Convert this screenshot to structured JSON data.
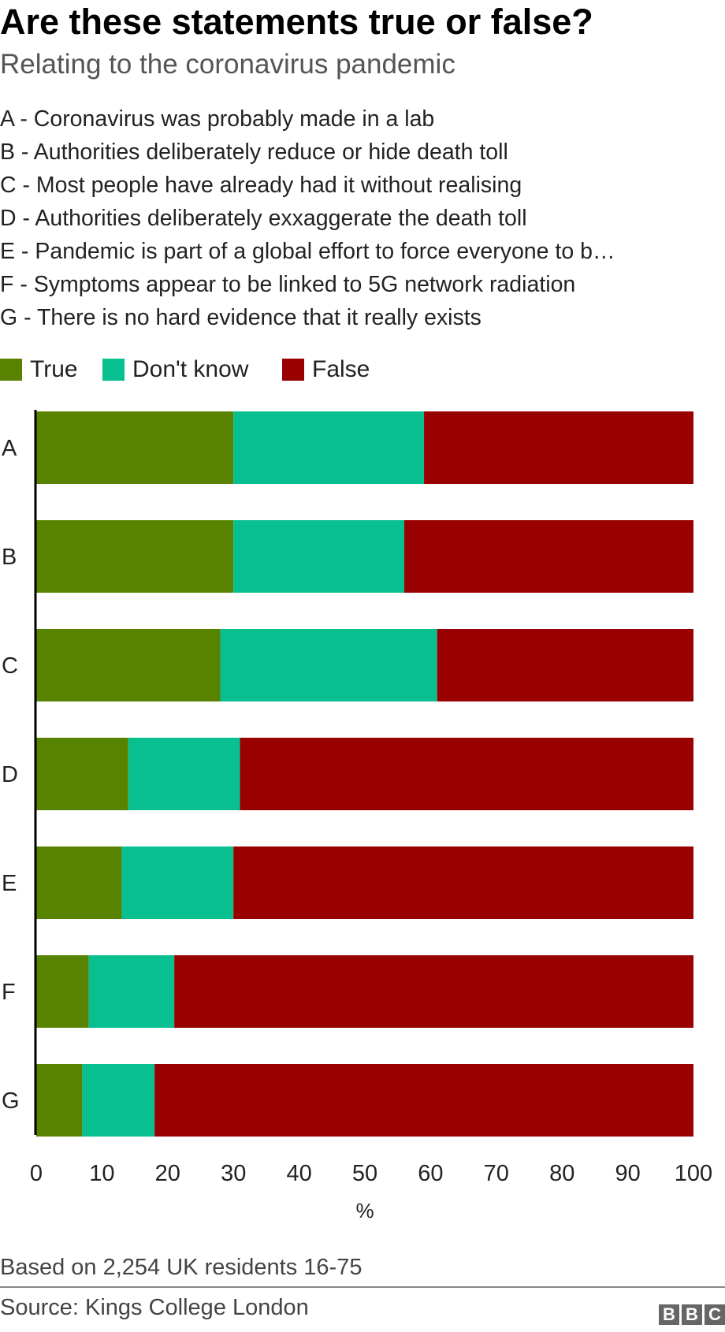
{
  "header": {
    "title": "Are these statements true or false?",
    "subtitle": "Relating to the coronavirus pandemic"
  },
  "statements": [
    "A - Coronavirus was probably made in a lab",
    "B - Authorities deliberately reduce or hide death toll",
    "C - Most people have already had it without realising",
    "D - Authorities deliberately exxaggerate the death toll",
    "E - Pandemic is part of a global effort to force everyone to b…",
    "F - Symptoms appear to be linked to 5G network radiation",
    "G - There is no hard evidence that it really exists"
  ],
  "footer": {
    "note": "Based on 2,254 UK residents 16-75",
    "source": "Source: Kings College London",
    "logo": "BBC"
  },
  "chart_data": {
    "type": "bar",
    "orientation": "horizontal",
    "stacked": true,
    "categories": [
      "A",
      "B",
      "C",
      "D",
      "E",
      "F",
      "G"
    ],
    "series": [
      {
        "name": "True",
        "color": "#588300",
        "values": [
          30,
          30,
          28,
          14,
          13,
          8,
          7
        ]
      },
      {
        "name": "Don't know",
        "color": "#07bf8f",
        "values": [
          29,
          26,
          33,
          17,
          17,
          13,
          11
        ]
      },
      {
        "name": "False",
        "color": "#990000",
        "values": [
          41,
          44,
          39,
          69,
          70,
          79,
          82
        ]
      }
    ],
    "xlim": [
      0,
      100
    ],
    "xticks": [
      "0",
      "10",
      "20",
      "30",
      "40",
      "50",
      "60",
      "70",
      "80",
      "90",
      "100"
    ],
    "xlabel": "%",
    "legend": "top-left",
    "grid": false
  }
}
